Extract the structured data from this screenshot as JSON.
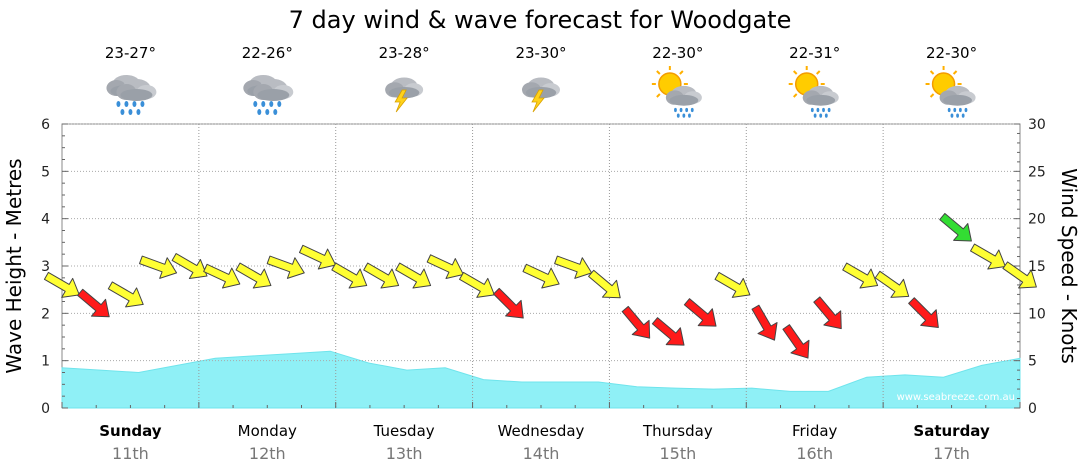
{
  "chart_data": {
    "type": "area",
    "title": "7 day wind & wave forecast for Woodgate",
    "ylabel_left": "Wave Height - Metres",
    "ylabel_right": "Wind Speed - Knots",
    "ylim_left": [
      0,
      6
    ],
    "ylim_right": [
      0,
      30
    ],
    "yticks_left": [
      "0",
      "1",
      "2",
      "3",
      "4",
      "5",
      "6"
    ],
    "yticks_right": [
      "0",
      "5",
      "10",
      "15",
      "20",
      "25",
      "30"
    ],
    "grid": true,
    "credit": "www.seabreeze.com.au",
    "colors": {
      "wave_fill": "#8ff0f6",
      "wind_low": "#ffff33",
      "wind_mid": "#33dd33",
      "wind_strong": "#ff1a1a",
      "grid": "#aaaaaa"
    },
    "days": [
      {
        "day": "Sunday",
        "date": "11th",
        "temp": "23-27°",
        "icon": "rain-icon",
        "bold": true
      },
      {
        "day": "Monday",
        "date": "12th",
        "temp": "22-26°",
        "icon": "rain-icon",
        "bold": false
      },
      {
        "day": "Tuesday",
        "date": "13th",
        "temp": "23-28°",
        "icon": "storm-icon",
        "bold": false
      },
      {
        "day": "Wednesday",
        "date": "14th",
        "temp": "23-30°",
        "icon": "storm-icon",
        "bold": false
      },
      {
        "day": "Thursday",
        "date": "15th",
        "temp": "22-30°",
        "icon": "sun-showers-icon",
        "bold": false
      },
      {
        "day": "Friday",
        "date": "16th",
        "temp": "22-31°",
        "icon": "sun-showers-icon",
        "bold": false
      },
      {
        "day": "Saturday",
        "date": "17th",
        "temp": "22-30°",
        "icon": "sun-showers-icon",
        "bold": true
      }
    ],
    "wave_height_m": [
      0.85,
      0.8,
      0.75,
      0.9,
      1.05,
      1.1,
      1.15,
      1.2,
      0.95,
      0.8,
      0.85,
      0.6,
      0.55,
      0.55,
      0.55,
      0.45,
      0.42,
      0.4,
      0.42,
      0.35,
      0.35,
      0.65,
      0.7,
      0.65,
      0.9,
      1.05
    ],
    "wind_knots": [
      13,
      11,
      12,
      15,
      15,
      14,
      14,
      15,
      16,
      14,
      14,
      14,
      15,
      13,
      11,
      14,
      15,
      13,
      9,
      8,
      10,
      13,
      9,
      7,
      10,
      14,
      13,
      10,
      19,
      16,
      14
    ],
    "wind_category": [
      "low",
      "strong",
      "low",
      "low",
      "low",
      "low",
      "low",
      "low",
      "low",
      "low",
      "low",
      "low",
      "low",
      "low",
      "strong",
      "low",
      "low",
      "low",
      "strong",
      "strong",
      "strong",
      "low",
      "strong",
      "strong",
      "strong",
      "low",
      "low",
      "strong",
      "mid",
      "low",
      "low"
    ],
    "wind_direction_deg": [
      120,
      130,
      120,
      110,
      120,
      115,
      120,
      110,
      115,
      120,
      120,
      120,
      115,
      120,
      135,
      115,
      110,
      130,
      140,
      130,
      130,
      120,
      150,
      145,
      140,
      120,
      125,
      135,
      130,
      120,
      125
    ]
  }
}
